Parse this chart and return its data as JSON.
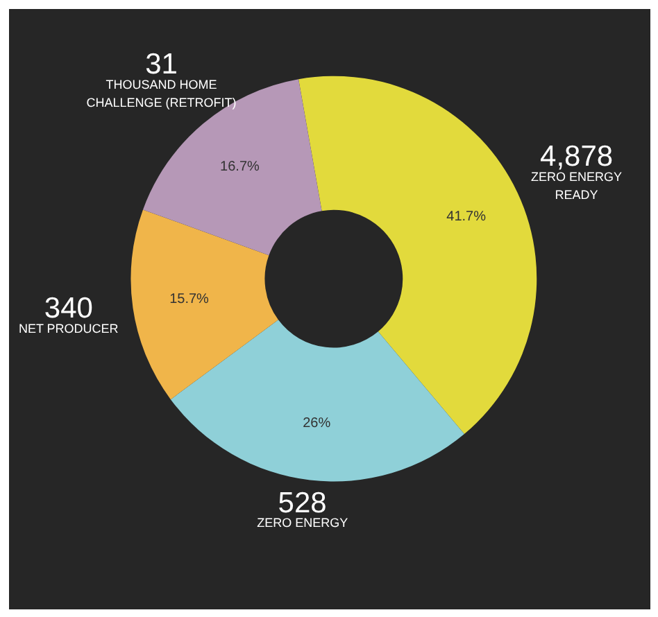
{
  "chart_data": {
    "type": "donut",
    "categories": [
      "ZERO ENERGY\nREADY",
      "ZERO ENERGY",
      "NET PRODUCER",
      "THOUSAND HOME\nCHALLENGE (RETROFIT)"
    ],
    "values": [
      41.7,
      26,
      15.7,
      16.7
    ],
    "colors": [
      "#e2da3c",
      "#8fd0d8",
      "#f0b54a",
      "#b698b7"
    ],
    "value_labels": [
      "41.7%",
      "26%",
      "15.7%",
      "16.7%"
    ],
    "annotations": [
      "4,878",
      "528",
      "340",
      "31"
    ]
  }
}
